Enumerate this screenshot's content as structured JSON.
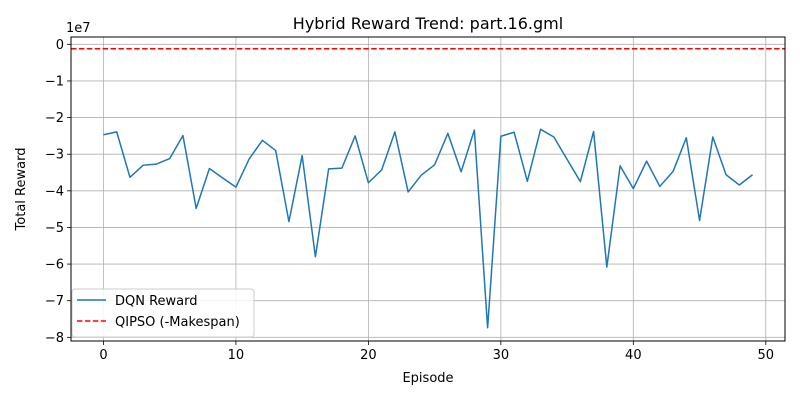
{
  "chart_data": {
    "type": "line",
    "title": "Hybrid Reward Trend: part.16.gml",
    "xlabel": "Episode",
    "ylabel": "Total Reward",
    "y_scale_label": "1e7",
    "xlim": [
      -2.45,
      51.45
    ],
    "ylim": [
      -8.1,
      0.2
    ],
    "grid": true,
    "legend_position": "lower-left",
    "x_ticks": [
      0,
      10,
      20,
      30,
      40,
      50
    ],
    "y_ticks": [
      0,
      -1,
      -2,
      -3,
      -4,
      -5,
      -6,
      -7,
      -8
    ],
    "series": [
      {
        "name": "DQN Reward",
        "style": "solid",
        "color": "#1f77b4",
        "x": [
          0,
          1,
          2,
          3,
          4,
          5,
          6,
          7,
          8,
          9,
          10,
          11,
          12,
          13,
          14,
          15,
          16,
          17,
          18,
          19,
          20,
          21,
          22,
          23,
          24,
          25,
          26,
          27,
          28,
          29,
          30,
          31,
          32,
          33,
          34,
          35,
          36,
          37,
          38,
          39,
          40,
          41,
          42,
          43,
          44,
          45,
          46,
          47,
          48,
          49
        ],
        "values": [
          -2.47,
          -2.39,
          -3.63,
          -3.3,
          -3.27,
          -3.12,
          -2.49,
          -4.48,
          -3.39,
          -3.65,
          -3.9,
          -3.13,
          -2.62,
          -2.9,
          -4.84,
          -3.04,
          -5.8,
          -3.4,
          -3.38,
          -2.5,
          -3.78,
          -3.43,
          -2.39,
          -4.03,
          -3.57,
          -3.29,
          -2.43,
          -3.48,
          -2.34,
          -7.74,
          -2.51,
          -2.4,
          -3.74,
          -2.32,
          -2.53,
          -3.14,
          -3.75,
          -2.38,
          -6.08,
          -3.32,
          -3.94,
          -3.19,
          -3.88,
          -3.47,
          -2.55,
          -4.81,
          -2.53,
          -3.56,
          -3.84,
          -3.56
        ]
      },
      {
        "name": "QIPSO (-Makespan)",
        "style": "dashed",
        "color": "#ff0000",
        "type": "hline",
        "y": -0.12
      }
    ]
  }
}
